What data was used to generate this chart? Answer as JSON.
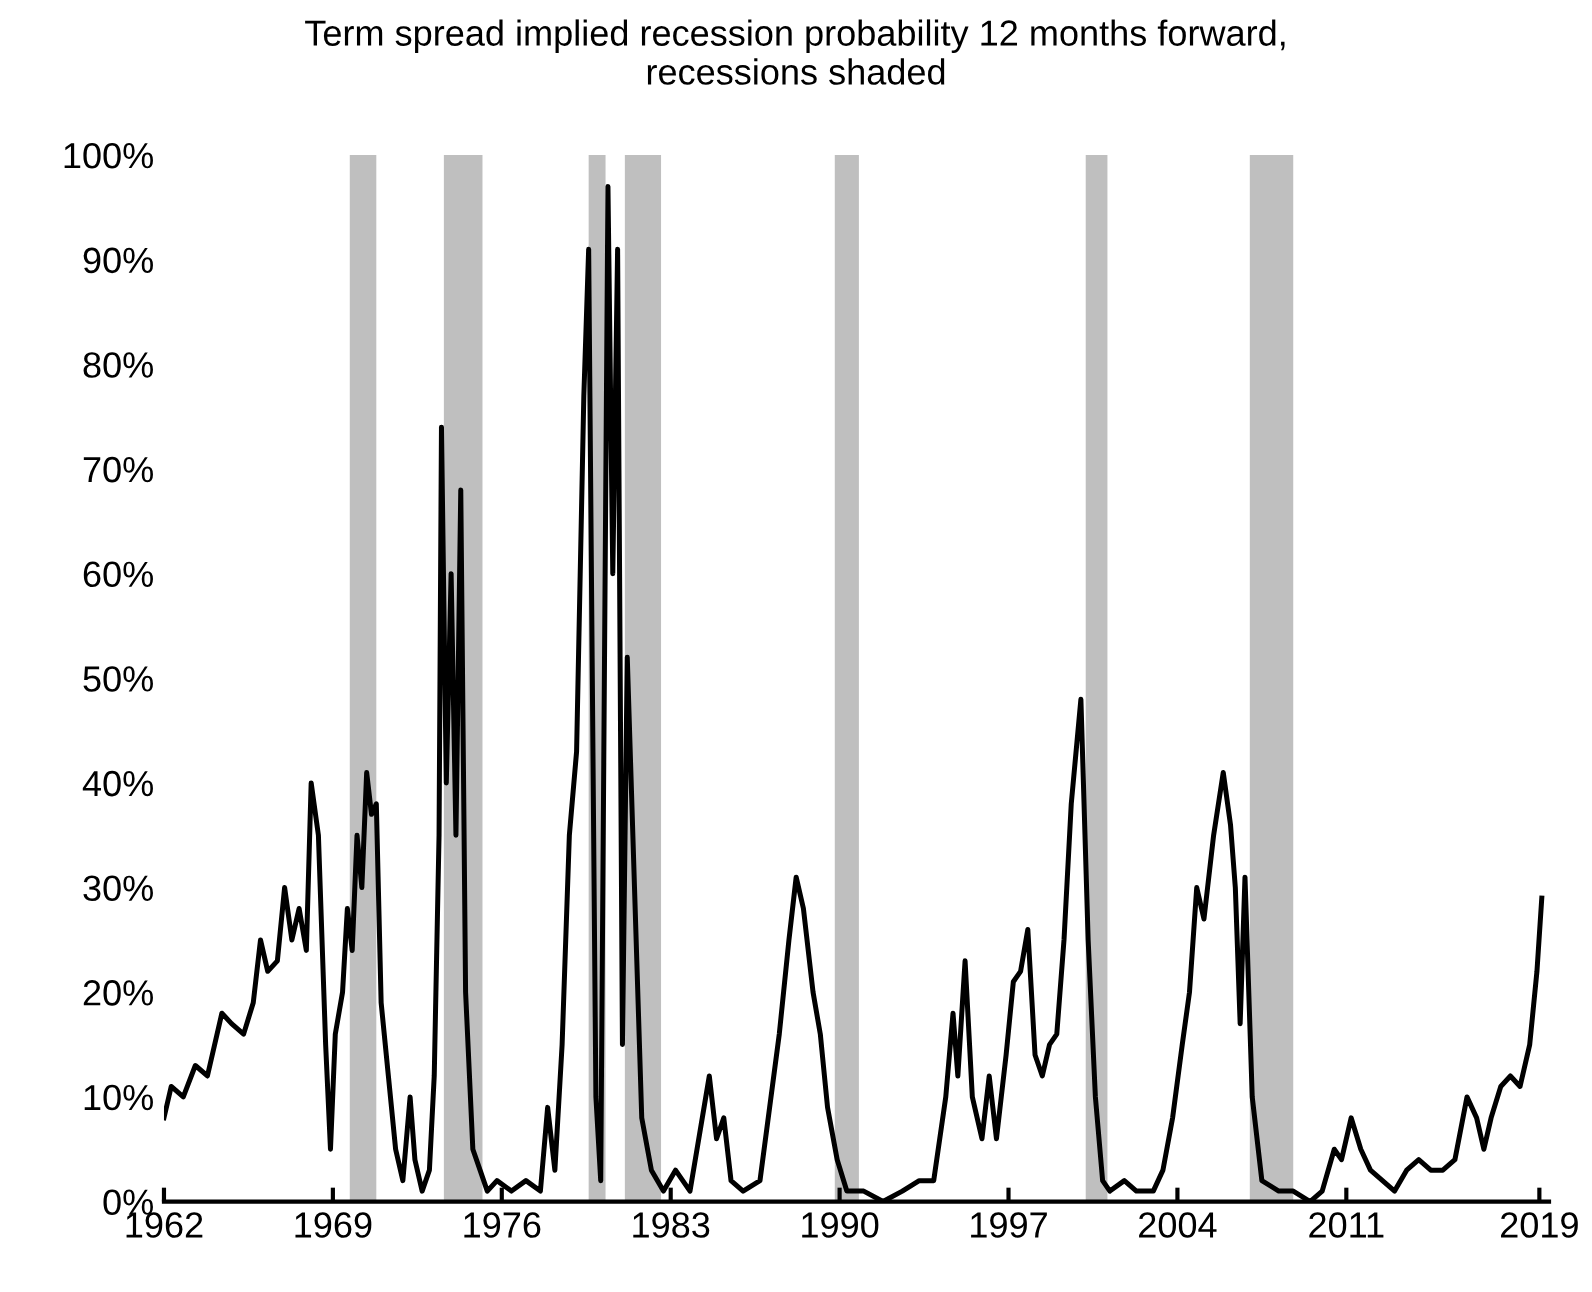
{
  "chart_data": {
    "type": "line",
    "title": "Term spread implied recession probability 12 months forward,\nrecessions shaded",
    "x": [
      1962.0,
      1962.3,
      1962.8,
      1963.3,
      1963.8,
      1964.4,
      1964.8,
      1965.3,
      1965.7,
      1966.0,
      1966.3,
      1966.7,
      1967.0,
      1967.3,
      1967.6,
      1967.9,
      1968.1,
      1968.4,
      1968.7,
      1968.9,
      1969.1,
      1969.4,
      1969.6,
      1969.8,
      1970.0,
      1970.2,
      1970.4,
      1970.6,
      1970.8,
      1971.0,
      1971.3,
      1971.6,
      1971.9,
      1972.2,
      1972.4,
      1972.7,
      1973.0,
      1973.2,
      1973.4,
      1973.5,
      1973.7,
      1973.9,
      1974.1,
      1974.3,
      1974.5,
      1974.8,
      1975.1,
      1975.4,
      1975.8,
      1976.4,
      1977.0,
      1977.6,
      1977.9,
      1978.2,
      1978.5,
      1978.8,
      1979.1,
      1979.4,
      1979.6,
      1979.9,
      1980.1,
      1980.4,
      1980.6,
      1980.8,
      1981.0,
      1981.2,
      1981.5,
      1981.8,
      1982.2,
      1982.7,
      1983.2,
      1983.8,
      1984.6,
      1984.9,
      1985.2,
      1985.5,
      1986.0,
      1986.7,
      1987.1,
      1987.5,
      1987.9,
      1988.2,
      1988.5,
      1988.9,
      1989.2,
      1989.5,
      1989.9,
      1990.3,
      1991.0,
      1991.8,
      1992.6,
      1993.3,
      1993.9,
      1994.4,
      1994.7,
      1994.9,
      1995.2,
      1995.5,
      1995.9,
      1996.2,
      1996.5,
      1996.9,
      1997.2,
      1997.5,
      1997.8,
      1998.1,
      1998.4,
      1998.7,
      1999.0,
      1999.3,
      1999.6,
      2000.0,
      2000.3,
      2000.6,
      2000.9,
      2001.2,
      2001.8,
      2002.3,
      2003.0,
      2003.4,
      2003.8,
      2004.2,
      2004.5,
      2004.8,
      2005.1,
      2005.5,
      2005.9,
      2006.2,
      2006.4,
      2006.6,
      2006.8,
      2007.1,
      2007.5,
      2008.2,
      2008.8,
      2009.5,
      2010.0,
      2010.5,
      2010.8,
      2011.2,
      2011.6,
      2012.0,
      2012.5,
      2013.0,
      2013.5,
      2014.0,
      2014.5,
      2015.0,
      2015.5,
      2016.0,
      2016.4,
      2016.7,
      2017.0,
      2017.4,
      2017.8,
      2018.2,
      2018.6,
      2018.9,
      2019.1
    ],
    "series": [
      {
        "color": "#000000",
        "values": [
          8,
          11,
          10,
          13,
          12,
          18,
          17,
          16,
          19,
          25,
          22,
          23,
          30,
          25,
          28,
          24,
          40,
          35,
          15,
          5,
          16,
          20,
          28,
          24,
          35,
          30,
          41,
          37,
          38,
          19,
          12,
          5,
          2,
          10,
          4,
          1,
          3,
          12,
          35,
          74,
          40,
          60,
          35,
          68,
          20,
          5,
          3,
          1,
          2,
          1,
          2,
          1,
          9,
          3,
          15,
          35,
          43,
          77,
          91,
          10,
          2,
          97,
          60,
          91,
          15,
          52,
          30,
          8,
          3,
          1,
          3,
          1,
          12,
          6,
          8,
          2,
          1,
          2,
          9,
          16,
          25,
          31,
          28,
          20,
          16,
          9,
          4,
          1,
          1,
          0,
          1,
          2,
          2,
          10,
          18,
          12,
          23,
          10,
          6,
          12,
          6,
          14,
          21,
          22,
          26,
          14,
          12,
          15,
          16,
          25,
          38,
          48,
          25,
          10,
          2,
          1,
          2,
          1,
          1,
          3,
          8,
          15,
          20,
          30,
          27,
          35,
          41,
          36,
          30,
          17,
          31,
          10,
          2,
          1,
          1,
          0,
          1,
          5,
          4,
          8,
          5,
          3,
          2,
          1,
          3,
          4,
          3,
          3,
          4,
          10,
          8,
          5,
          8,
          11,
          12,
          11,
          15,
          22,
          29
        ]
      }
    ],
    "xlim": [
      1962,
      2019.4
    ],
    "xticks": [
      1962,
      1969,
      1976,
      1983,
      1990,
      1997,
      2004,
      2011,
      2019
    ],
    "ylim": [
      0,
      100
    ],
    "yticks": [
      {
        "value": 0,
        "label": "0%"
      },
      {
        "value": 10,
        "label": "10%"
      },
      {
        "value": 20,
        "label": "20%"
      },
      {
        "value": 30,
        "label": "30%"
      },
      {
        "value": 40,
        "label": "40%"
      },
      {
        "value": 50,
        "label": "50%"
      },
      {
        "value": 60,
        "label": "60%"
      },
      {
        "value": 70,
        "label": "70%"
      },
      {
        "value": 80,
        "label": "80%"
      },
      {
        "value": 90,
        "label": "90%"
      },
      {
        "value": 100,
        "label": "100%"
      }
    ],
    "bands": [
      {
        "axis": "x",
        "from": 1969.7,
        "to": 1970.8,
        "color": "#bfbfbf"
      },
      {
        "axis": "x",
        "from": 1973.6,
        "to": 1975.2,
        "color": "#bfbfbf"
      },
      {
        "axis": "x",
        "from": 1979.6,
        "to": 1980.3,
        "color": "#bfbfbf"
      },
      {
        "axis": "x",
        "from": 1981.1,
        "to": 1982.6,
        "color": "#bfbfbf"
      },
      {
        "axis": "x",
        "from": 1989.8,
        "to": 1990.8,
        "color": "#bfbfbf"
      },
      {
        "axis": "x",
        "from": 2000.2,
        "to": 2001.1,
        "color": "#bfbfbf"
      },
      {
        "axis": "x",
        "from": 2007.0,
        "to": 2008.8,
        "color": "#bfbfbf"
      }
    ],
    "grid": false,
    "line_style": "solid"
  }
}
